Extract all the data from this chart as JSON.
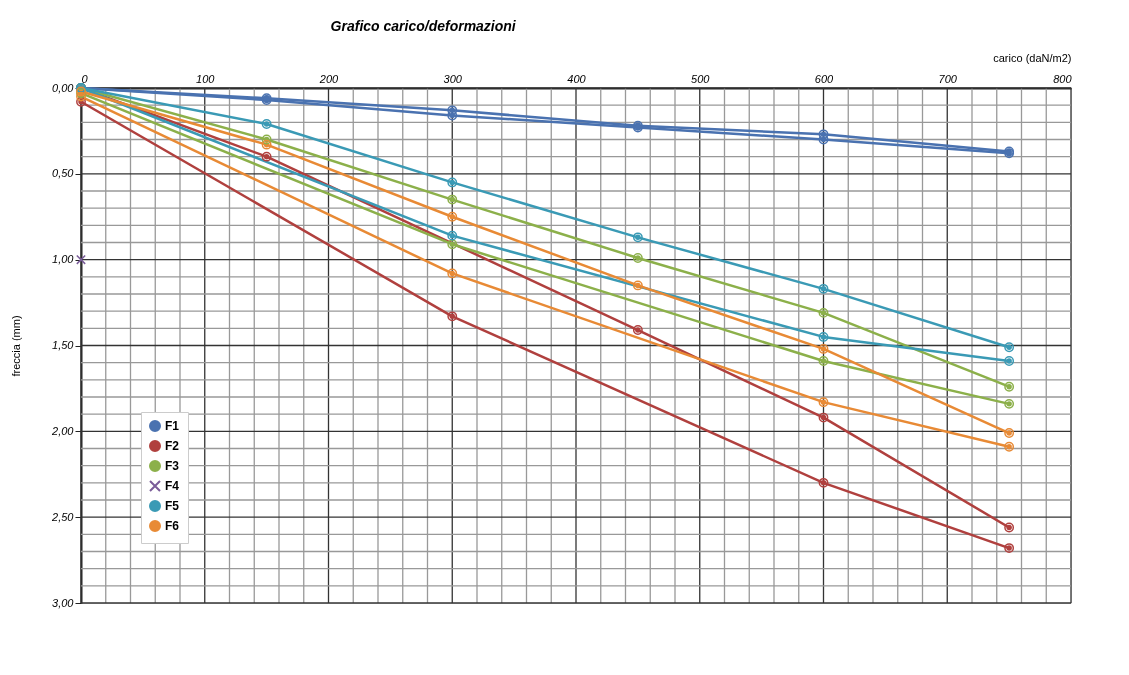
{
  "chart_data": {
    "type": "line",
    "title": "Grafico  carico/deformazioni",
    "xlabel": "carico (daN/m2)",
    "ylabel": "freccia (mm)",
    "xlim": [
      0,
      800
    ],
    "xticks": [
      0,
      {
        "value": 20,
        "label": null
      },
      {
        "value": 40,
        "label": null
      },
      {
        "value": 60,
        "label": null
      },
      {
        "value": 80,
        "label": null
      },
      100,
      {
        "value": 120,
        "label": null
      },
      {
        "value": 140,
        "label": null
      },
      {
        "value": 160,
        "label": null
      },
      {
        "value": 180,
        "label": null
      },
      200,
      {
        "value": 220,
        "label": null
      },
      {
        "value": 240,
        "label": null
      },
      {
        "value": 260,
        "label": null
      },
      {
        "value": 280,
        "label": null
      },
      300,
      {
        "value": 320,
        "label": null
      },
      {
        "value": 340,
        "label": null
      },
      {
        "value": 360,
        "label": null
      },
      {
        "value": 380,
        "label": null
      },
      400,
      {
        "value": 420,
        "label": null
      },
      {
        "value": 440,
        "label": null
      },
      {
        "value": 460,
        "label": null
      },
      {
        "value": 480,
        "label": null
      },
      500,
      {
        "value": 520,
        "label": null
      },
      {
        "value": 540,
        "label": null
      },
      {
        "value": 560,
        "label": null
      },
      {
        "value": 580,
        "label": null
      },
      600,
      {
        "value": 620,
        "label": null
      },
      {
        "value": 640,
        "label": null
      },
      {
        "value": 660,
        "label": null
      },
      {
        "value": 680,
        "label": null
      },
      700,
      {
        "value": 720,
        "label": null
      },
      {
        "value": 740,
        "label": null
      },
      {
        "value": 760,
        "label": null
      },
      {
        "value": 780,
        "label": null
      },
      800
    ],
    "ylim": [
      3,
      0
    ],
    "yticks": [
      {
        "value": 0,
        "label": "0,00"
      },
      {
        "value": 0.1,
        "label": null
      },
      {
        "value": 0.2,
        "label": null
      },
      {
        "value": 0.3,
        "label": null
      },
      {
        "value": 0.4,
        "label": null
      },
      {
        "value": 0.5,
        "label": "0,50"
      },
      {
        "value": 0.6,
        "label": null
      },
      {
        "value": 0.7,
        "label": null
      },
      {
        "value": 0.8,
        "label": null
      },
      {
        "value": 0.9,
        "label": null
      },
      {
        "value": 1,
        "label": "1,00"
      },
      {
        "value": 1.1,
        "label": null
      },
      {
        "value": 1.2,
        "label": null
      },
      {
        "value": 1.3,
        "label": null
      },
      {
        "value": 1.4,
        "label": null
      },
      {
        "value": 1.5,
        "label": "1,50"
      },
      {
        "value": 1.6,
        "label": null
      },
      {
        "value": 1.7,
        "label": null
      },
      {
        "value": 1.8,
        "label": null
      },
      {
        "value": 1.9,
        "label": null
      },
      {
        "value": 2,
        "label": "2,00"
      },
      {
        "value": 2.1,
        "label": null
      },
      {
        "value": 2.2,
        "label": null
      },
      {
        "value": 2.3,
        "label": null
      },
      {
        "value": 2.4,
        "label": null
      },
      {
        "value": 2.5,
        "label": "2,50"
      },
      {
        "value": 2.6,
        "label": null
      },
      {
        "value": 2.7,
        "label": null
      },
      {
        "value": 2.8,
        "label": null
      },
      {
        "value": 2.9,
        "label": null
      },
      {
        "value": 3,
        "label": "3,00"
      }
    ],
    "grid": true,
    "legend": "bottom left",
    "marker": "circle",
    "line_style": "solid",
    "series": [
      {
        "name": "F1",
        "color": "#4a72b0",
        "x": [
          0,
          150,
          300,
          450,
          600,
          750
        ],
        "values": [
          0,
          0.06,
          0.13,
          0.22,
          0.27,
          0.37
        ]
      },
      {
        "color": "#4a72b0",
        "x": [
          0,
          150,
          300,
          450,
          600,
          750
        ],
        "values": [
          0,
          0.07,
          0.16,
          0.23,
          0.3,
          0.38
        ]
      },
      {
        "name": "F2",
        "color": "#b0403e",
        "x": [
          0,
          150,
          450,
          600,
          750
        ],
        "values": [
          0,
          0.4,
          1.41,
          1.92,
          2.56
        ]
      },
      {
        "color": "#b0403e",
        "x": [
          0,
          300,
          600,
          750
        ],
        "values": [
          0.08,
          1.33,
          2.3,
          2.68
        ]
      },
      {
        "name": "F3",
        "color": "#8cb04a",
        "x": [
          0,
          150,
          300,
          450,
          600,
          750
        ],
        "values": [
          0,
          0.3,
          0.65,
          0.99,
          1.31,
          1.74
        ]
      },
      {
        "color": "#8cb04a",
        "x": [
          0,
          300,
          600,
          750
        ],
        "values": [
          0.03,
          0.91,
          1.59,
          1.84
        ]
      },
      {
        "name": "F4",
        "color": "#7a5c99",
        "marker": "cross",
        "x": [
          0
        ],
        "values": [
          1.0
        ]
      },
      {
        "name": "F5",
        "color": "#3a9ab5",
        "x": [
          0,
          150,
          300,
          450,
          600,
          750
        ],
        "values": [
          0,
          0.21,
          0.55,
          0.87,
          1.17,
          1.51
        ]
      },
      {
        "color": "#3a9ab5",
        "x": [
          0,
          300,
          600,
          750
        ],
        "values": [
          0,
          0.86,
          1.45,
          1.59
        ]
      },
      {
        "name": "F6",
        "color": "#e88a35",
        "x": [
          0,
          150,
          300,
          450,
          600,
          750
        ],
        "values": [
          0.02,
          0.33,
          0.75,
          1.15,
          1.52,
          2.01
        ]
      },
      {
        "color": "#e88a35",
        "x": [
          0,
          300,
          600,
          750
        ],
        "values": [
          0.05,
          1.08,
          1.83,
          2.09
        ]
      }
    ]
  }
}
